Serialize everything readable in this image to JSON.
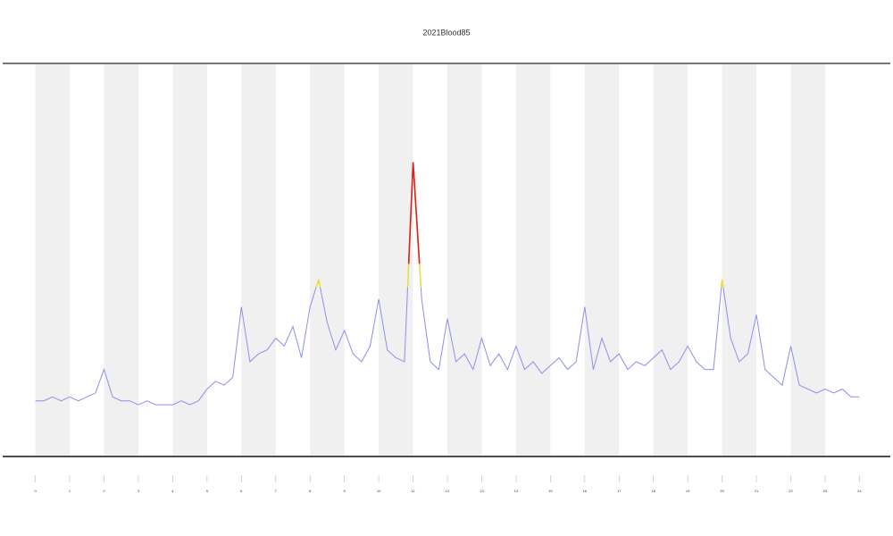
{
  "chart_data": {
    "type": "line",
    "title": "2021Blood85",
    "x": [
      0,
      0.25,
      0.5,
      0.75,
      1,
      1.25,
      1.5,
      1.75,
      2,
      2.25,
      2.5,
      2.75,
      3,
      3.25,
      3.5,
      3.75,
      4,
      4.25,
      4.5,
      4.75,
      5,
      5.25,
      5.5,
      5.75,
      6,
      6.25,
      6.5,
      6.75,
      7,
      7.25,
      7.5,
      7.75,
      8,
      8.25,
      8.5,
      8.75,
      9,
      9.25,
      9.5,
      9.75,
      10,
      10.25,
      10.5,
      10.75,
      11,
      11.25,
      11.5,
      11.75,
      12,
      12.25,
      12.5,
      12.75,
      13,
      13.25,
      13.5,
      13.75,
      14,
      14.25,
      14.5,
      14.75,
      15,
      15.25,
      15.5,
      15.75,
      16,
      16.25,
      16.5,
      16.75,
      17,
      17.25,
      17.5,
      17.75,
      18,
      18.25,
      18.5,
      18.75,
      19,
      19.25,
      19.5,
      19.75,
      20,
      20.25,
      20.5,
      20.75,
      21,
      21.25,
      21.5,
      21.75,
      22,
      22.25,
      22.5,
      22.75,
      23,
      23.25,
      23.5,
      23.75,
      24
    ],
    "series": [
      {
        "color": "#8a90e8",
        "values": [
          14,
          14,
          15,
          14,
          15,
          14,
          15,
          16,
          22,
          15,
          14,
          14,
          13,
          14,
          13,
          13,
          13,
          14,
          13,
          14,
          17,
          19,
          18,
          20,
          38,
          24,
          26,
          27,
          30,
          28,
          33,
          25,
          38,
          45,
          34,
          27,
          32,
          26,
          24,
          28,
          40,
          27,
          25,
          24,
          75,
          40,
          24,
          22,
          35,
          24,
          26,
          22,
          30,
          23,
          26,
          22,
          28,
          22,
          24,
          21,
          23,
          25,
          22,
          24,
          38,
          22,
          30,
          24,
          26,
          22,
          24,
          23,
          25,
          27,
          22,
          24,
          28,
          24,
          22,
          22,
          45,
          30,
          24,
          26,
          36,
          22,
          20,
          18,
          28,
          18,
          17,
          16,
          17,
          16,
          17,
          15,
          15
        ]
      }
    ],
    "color_bands": [
      {
        "above": 43,
        "color": "#e8e040"
      },
      {
        "above": 49,
        "color": "#e02020"
      }
    ],
    "xlim": [
      -0.9,
      24.9
    ],
    "ylim": [
      0,
      100
    ],
    "xticks": [
      0,
      1,
      2,
      3,
      4,
      5,
      6,
      7,
      8,
      9,
      10,
      11,
      12,
      13,
      14,
      15,
      16,
      17,
      18,
      19,
      20,
      21,
      22,
      23,
      24
    ]
  }
}
